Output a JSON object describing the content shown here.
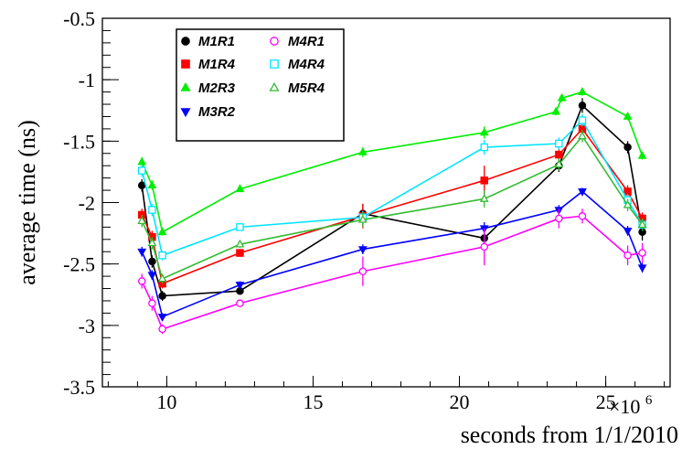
{
  "chart_data": {
    "type": "line",
    "xlabel": "seconds from 1/1/2010",
    "ylabel": "average time (ns)",
    "x_multiplier_label": "×10",
    "x_multiplier_exponent": "6",
    "xlim": [
      7.8,
      27.2
    ],
    "ylim": [
      -3.5,
      -0.5
    ],
    "x_ticks": [
      10,
      15,
      20,
      25
    ],
    "x_tick_labels": [
      "10",
      "15",
      "20",
      "25"
    ],
    "y_ticks": [
      -3.5,
      -3,
      -2.5,
      -2,
      -1.5,
      -1,
      -0.5
    ],
    "y_tick_labels": [
      "-3.5",
      "-3",
      "-2.5",
      "-2",
      "-1.5",
      "-1",
      "-0.5"
    ],
    "grid": false,
    "legend_position": "top-left",
    "series": [
      {
        "name": "M1R1",
        "color": "#000000",
        "marker": "circle",
        "filled": true,
        "x": [
          9.15,
          9.5,
          9.85,
          12.5,
          16.7,
          20.85,
          23.4,
          24.2,
          25.75,
          26.25
        ],
        "y": [
          -1.86,
          -2.48,
          -2.76,
          -2.72,
          -2.09,
          -2.29,
          -1.7,
          -1.21,
          -1.55,
          -2.24
        ],
        "err": [
          0.05,
          0.05,
          0.04,
          0.03,
          0.08,
          0.1,
          0.05,
          0.06,
          0.05,
          0.07
        ]
      },
      {
        "name": "M1R4",
        "color": "#ff0000",
        "marker": "square",
        "filled": true,
        "x": [
          9.15,
          9.5,
          9.85,
          12.5,
          16.7,
          20.85,
          23.4,
          24.2,
          25.75,
          26.25
        ],
        "y": [
          -2.1,
          -2.28,
          -2.66,
          -2.41,
          -2.11,
          -1.82,
          -1.61,
          -1.4,
          -1.91,
          -2.13
        ],
        "err": [
          0.05,
          0.05,
          0.04,
          0.03,
          0.1,
          0.12,
          0.06,
          0.05,
          0.05,
          0.05
        ]
      },
      {
        "name": "M2R3",
        "color": "#00ee00",
        "marker": "triangle-up",
        "filled": true,
        "x": [
          9.15,
          9.5,
          9.85,
          12.5,
          16.7,
          20.85,
          23.3,
          23.5,
          24.2,
          25.75,
          26.25
        ],
        "y": [
          -1.67,
          -1.86,
          -2.24,
          -1.89,
          -1.59,
          -1.43,
          -1.26,
          -1.15,
          -1.1,
          -1.3,
          -1.62
        ],
        "err": [
          0.04,
          0.04,
          0.03,
          0.02,
          0.04,
          0.05,
          0.03,
          0.03,
          0.03,
          0.03,
          0.03
        ]
      },
      {
        "name": "M3R2",
        "color": "#0000ff",
        "marker": "triangle-down",
        "filled": true,
        "x": [
          9.15,
          9.5,
          9.85,
          12.5,
          16.7,
          20.85,
          23.4,
          24.2,
          25.75,
          26.25
        ],
        "y": [
          -2.4,
          -2.59,
          -2.93,
          -2.67,
          -2.38,
          -2.21,
          -2.06,
          -1.91,
          -2.23,
          -2.53
        ],
        "err": [
          0.04,
          0.04,
          0.03,
          0.03,
          0.04,
          0.05,
          0.04,
          0.03,
          0.04,
          0.04
        ]
      },
      {
        "name": "M4R1",
        "color": "#ff00ff",
        "marker": "circle",
        "filled": false,
        "x": [
          9.15,
          9.5,
          9.85,
          12.5,
          16.7,
          20.85,
          23.4,
          24.2,
          25.75,
          26.25
        ],
        "y": [
          -2.64,
          -2.82,
          -3.03,
          -2.82,
          -2.56,
          -2.36,
          -2.13,
          -2.11,
          -2.43,
          -2.41
        ],
        "err": [
          0.06,
          0.06,
          0.04,
          0.03,
          0.12,
          0.15,
          0.08,
          0.06,
          0.08,
          0.08
        ]
      },
      {
        "name": "M4R4",
        "color": "#00e5ff",
        "marker": "square",
        "filled": false,
        "x": [
          9.15,
          9.5,
          9.85,
          12.5,
          16.7,
          20.85,
          23.4,
          24.2,
          25.75,
          26.25
        ],
        "y": [
          -1.74,
          -2.06,
          -2.43,
          -2.2,
          -2.12,
          -1.55,
          -1.52,
          -1.33,
          -1.98,
          -2.18
        ],
        "err": [
          0.05,
          0.05,
          0.04,
          0.03,
          0.05,
          0.06,
          0.05,
          0.05,
          0.05,
          0.05
        ]
      },
      {
        "name": "M5R4",
        "color": "#33bb33",
        "marker": "triangle-up",
        "filled": false,
        "x": [
          9.15,
          9.5,
          9.85,
          12.5,
          16.7,
          20.85,
          23.4,
          24.2,
          25.75,
          26.25
        ],
        "y": [
          -2.15,
          -2.33,
          -2.62,
          -2.34,
          -2.14,
          -1.97,
          -1.69,
          -1.46,
          -2.02,
          -2.18
        ],
        "err": [
          0.05,
          0.05,
          0.04,
          0.03,
          0.06,
          0.07,
          0.05,
          0.05,
          0.05,
          0.05
        ]
      }
    ]
  }
}
